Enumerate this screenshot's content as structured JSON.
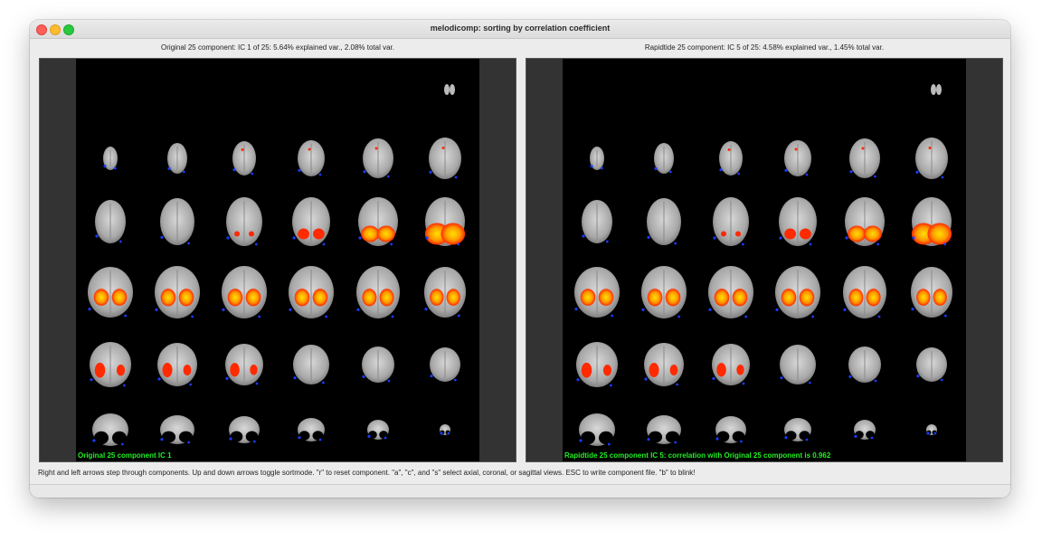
{
  "window": {
    "title": "melodicomp: sorting by correlation coefficient"
  },
  "left": {
    "header": "Original 25 component: IC 1 of 25: 5.64% explained var., 2.08% total var.",
    "caption": "Original 25 component IC 1"
  },
  "right": {
    "header": "Rapidtide 25 component: IC 5 of 25: 4.58% explained var., 1.45% total var.",
    "caption": "Rapidtide 25 component IC 5: correlation with Original 25 component is 0.962"
  },
  "help_text": "Right and left arrows step through components. Up and down arrows toggle sortmode.  \"r\" to reset component.  \"a\", \"c\", and \"s\" select axial, coronal, or sagittal views.  ESC to write component file.  \"b\" to blink!",
  "colors": {
    "activation_hot": "#ff2a00",
    "activation_core": "#ffe000",
    "activation_negative": "#1a3cff",
    "caption_text": "#22ee22"
  },
  "icons": {
    "close": "close-icon",
    "minimize": "minimize-icon",
    "maximize": "maximize-icon"
  }
}
